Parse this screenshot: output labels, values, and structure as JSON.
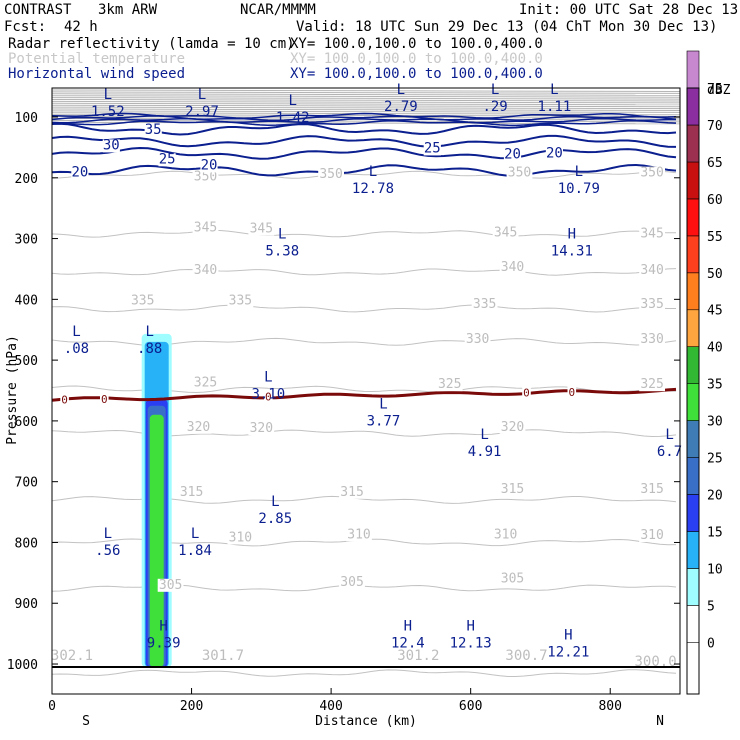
{
  "header": {
    "model": "CONTRAST",
    "config": "3km ARW",
    "agency": "NCAR/MMMM",
    "init": "Init: 00 UTC Sat 28 Dec 13",
    "fcst_label": "Fcst:",
    "fcst_value": "42 h",
    "valid": "Valid: 18 UTC Sun 29 Dec 13 (04 ChT Mon 30 Dec 13)"
  },
  "fields": [
    {
      "name": "Radar reflectivity (lamda = 10 cm)",
      "xy": "XY= 100.0,100.0 to 100.0,400.0",
      "color": "#000000"
    },
    {
      "name": "Potential temperature",
      "xy": "XY= 100.0,100.0 to 100.0,400.0",
      "color": "#c8c8c8"
    },
    {
      "name": "Horizontal wind speed",
      "xy": "XY= 100.0,100.0 to 100.0,400.0",
      "color": "#0b1f8f"
    }
  ],
  "chart_data": {
    "type": "contour-cross-section",
    "xlabel": "Distance (km)",
    "ylabel": "Pressure (hPa)",
    "xlim": [
      0,
      900
    ],
    "ylim": [
      1050,
      50
    ],
    "x_ticks": [
      0,
      200,
      400,
      600,
      800
    ],
    "y_ticks": [
      100,
      200,
      300,
      400,
      500,
      600,
      700,
      800,
      900,
      1000
    ],
    "x_end_labels": {
      "left": "S",
      "right": "N"
    },
    "reflectivity_colorbar": {
      "unit": "dBZ",
      "levels": [
        0,
        5,
        10,
        15,
        20,
        25,
        30,
        35,
        40,
        45,
        50,
        55,
        60,
        65,
        70,
        75
      ],
      "colors": [
        "#ffffff",
        "#9ffcff",
        "#27b2f7",
        "#2b3ff2",
        "#3a6fc8",
        "#3f7bb5",
        "#3fe03a",
        "#33b833",
        "#ffa53f",
        "#ff7f1f",
        "#ff401f",
        "#ff1010",
        "#c81010",
        "#9b3050",
        "#8b2fa0",
        "#c888d0"
      ]
    },
    "reflectivity_column": {
      "x_km": 150,
      "top_hpa": 470,
      "base_hpa": 1005,
      "max_dbz": 30
    },
    "theta_isentropes": [
      {
        "value": 300,
        "p": 1015
      },
      {
        "value": 305,
        "p": 875
      },
      {
        "value": 310,
        "p": 800
      },
      {
        "value": 315,
        "p": 730
      },
      {
        "value": 320,
        "p": 620
      },
      {
        "value": 325,
        "p": 548
      },
      {
        "value": 330,
        "p": 470
      },
      {
        "value": 335,
        "p": 415
      },
      {
        "value": 340,
        "p": 355
      },
      {
        "value": 345,
        "p": 292
      },
      {
        "value": 350,
        "p": 195
      }
    ],
    "theta_labels": [
      {
        "text": "305",
        "x": 170,
        "p": 868
      },
      {
        "text": "305",
        "x": 430,
        "p": 863
      },
      {
        "text": "305",
        "x": 660,
        "p": 858
      },
      {
        "text": "310",
        "x": 270,
        "p": 790
      },
      {
        "text": "310",
        "x": 440,
        "p": 785
      },
      {
        "text": "310",
        "x": 650,
        "p": 785
      },
      {
        "text": "310",
        "x": 860,
        "p": 786
      },
      {
        "text": "315",
        "x": 200,
        "p": 715
      },
      {
        "text": "315",
        "x": 430,
        "p": 715
      },
      {
        "text": "315",
        "x": 660,
        "p": 710
      },
      {
        "text": "315",
        "x": 860,
        "p": 710
      },
      {
        "text": "320",
        "x": 210,
        "p": 608
      },
      {
        "text": "320",
        "x": 300,
        "p": 610
      },
      {
        "text": "320",
        "x": 660,
        "p": 608
      },
      {
        "text": "325",
        "x": 220,
        "p": 535
      },
      {
        "text": "325",
        "x": 570,
        "p": 538
      },
      {
        "text": "325",
        "x": 860,
        "p": 538
      },
      {
        "text": "330",
        "x": 610,
        "p": 464
      },
      {
        "text": "330",
        "x": 860,
        "p": 464
      },
      {
        "text": "335",
        "x": 130,
        "p": 400
      },
      {
        "text": "335",
        "x": 270,
        "p": 400
      },
      {
        "text": "335",
        "x": 620,
        "p": 406
      },
      {
        "text": "335",
        "x": 860,
        "p": 406
      },
      {
        "text": "340",
        "x": 220,
        "p": 350
      },
      {
        "text": "340",
        "x": 660,
        "p": 345
      },
      {
        "text": "340",
        "x": 860,
        "p": 350
      },
      {
        "text": "345",
        "x": 220,
        "p": 280
      },
      {
        "text": "345",
        "x": 300,
        "p": 282
      },
      {
        "text": "345",
        "x": 650,
        "p": 288
      },
      {
        "text": "345",
        "x": 860,
        "p": 290
      },
      {
        "text": "350",
        "x": 220,
        "p": 196
      },
      {
        "text": "350",
        "x": 400,
        "p": 192
      },
      {
        "text": "350",
        "x": 670,
        "p": 190
      },
      {
        "text": "350",
        "x": 860,
        "p": 190
      }
    ],
    "wind_isotachs": [
      {
        "value": 20,
        "p": 188
      },
      {
        "value": 25,
        "p": 160
      },
      {
        "value": 30,
        "p": 140
      },
      {
        "value": 35,
        "p": 120
      }
    ],
    "wind_labels": [
      {
        "text": "20",
        "x": 40,
        "p": 190
      },
      {
        "text": "20",
        "x": 225,
        "p": 178
      },
      {
        "text": "20",
        "x": 660,
        "p": 160
      },
      {
        "text": "20",
        "x": 720,
        "p": 158
      },
      {
        "text": "25",
        "x": 165,
        "p": 168
      },
      {
        "text": "25",
        "x": 545,
        "p": 150
      },
      {
        "text": "30",
        "x": 85,
        "p": 145
      },
      {
        "text": "35",
        "x": 145,
        "p": 120
      }
    ],
    "freezing_level": {
      "value": 0,
      "p_left": 565,
      "p_right": 550,
      "labels_x": [
        18,
        75,
        310,
        680,
        745
      ]
    },
    "extrema": [
      {
        "kind": "L",
        "value": "1.52",
        "x": 80,
        "p": 70
      },
      {
        "kind": "L",
        "value": "2.97",
        "x": 215,
        "p": 70
      },
      {
        "kind": "L",
        "value": "1.42",
        "x": 345,
        "p": 80
      },
      {
        "kind": "L",
        "value": "2.79",
        "x": 500,
        "p": 62
      },
      {
        "kind": "L",
        "value": ".29",
        "x": 635,
        "p": 62
      },
      {
        "kind": "L",
        "value": "1.11",
        "x": 720,
        "p": 62
      },
      {
        "kind": "L",
        "value": "12.78",
        "x": 460,
        "p": 197
      },
      {
        "kind": "L",
        "value": "10.79",
        "x": 755,
        "p": 197
      },
      {
        "kind": "L",
        "value": "5.38",
        "x": 330,
        "p": 300
      },
      {
        "kind": "H",
        "value": "14.31",
        "x": 745,
        "p": 300
      },
      {
        "kind": "L",
        "value": ".08",
        "x": 35,
        "p": 460
      },
      {
        "kind": "L",
        "value": ".88",
        "x": 140,
        "p": 460
      },
      {
        "kind": "L",
        "value": "3.10",
        "x": 310,
        "p": 535
      },
      {
        "kind": "L",
        "value": "3.77",
        "x": 475,
        "p": 580
      },
      {
        "kind": "L",
        "value": "4.91",
        "x": 620,
        "p": 630
      },
      {
        "kind": "L",
        "value": "6.7",
        "x": 885,
        "p": 630
      },
      {
        "kind": "L",
        "value": "2.85",
        "x": 320,
        "p": 740
      },
      {
        "kind": "L",
        "value": ".56",
        "x": 80,
        "p": 793
      },
      {
        "kind": "L",
        "value": "1.84",
        "x": 205,
        "p": 793
      },
      {
        "kind": "H",
        "value": "9.39",
        "x": 160,
        "p": 945
      },
      {
        "kind": "H",
        "value": "12.4",
        "x": 510,
        "p": 945
      },
      {
        "kind": "H",
        "value": "12.13",
        "x": 600,
        "p": 945
      },
      {
        "kind": "H",
        "value": "12.21",
        "x": 740,
        "p": 960
      }
    ],
    "surface_theta_labels": [
      {
        "text": "302.1",
        "x": 15,
        "p": 1000
      },
      {
        "text": "301.7",
        "x": 245,
        "p": 1000
      },
      {
        "text": "301.2",
        "x": 525,
        "p": 1000
      },
      {
        "text": "300.7",
        "x": 680,
        "p": 1000
      },
      {
        "text": "300.0",
        "x": 865,
        "p": 1010
      }
    ]
  }
}
